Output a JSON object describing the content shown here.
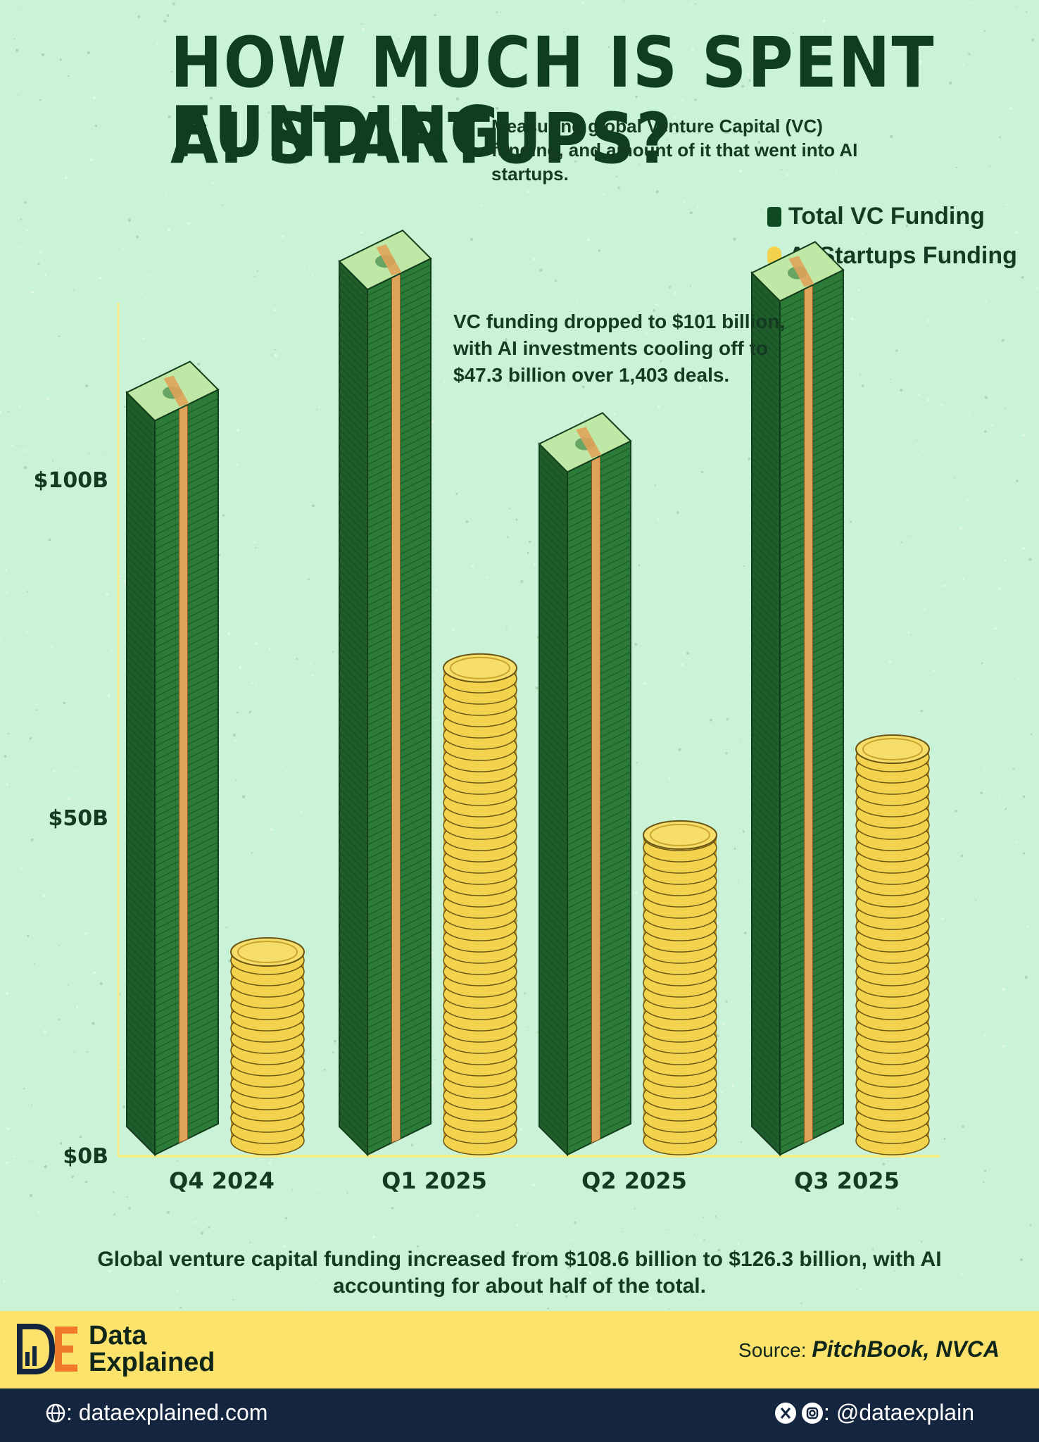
{
  "header": {
    "title_line1": "HOW MUCH IS SPENT FUNDING",
    "title_line2": "AI STARTUPS?",
    "subtitle": "Measuring global Venture Capital (VC) funding, and amount of it that went into AI startups."
  },
  "legend": {
    "vc": "Total VC Funding",
    "ai": "AI Startups Funding"
  },
  "colors": {
    "vc": "#2b7a37",
    "vc_dark": "#1f5e2a",
    "strap": "#e0a35a",
    "ai": "#f3d24e",
    "ai_dark": "#c9a52c",
    "axis": "#f1ee8a",
    "text": "#143a22"
  },
  "annotation": "VC funding dropped to $101 billion, with AI investments cooling off to $47.3 billion over 1,403 deals.",
  "footnote": "Global venture capital funding increased from $108.6 billion to $126.3 billion, with AI accounting for about half of the total.",
  "brand": {
    "name_line1": "Data",
    "name_line2": "Explained",
    "source_label": "Source:",
    "source_value": "PitchBook, NVCA",
    "website": ": dataexplained.com",
    "social": ": @dataexplain"
  },
  "chart_data": {
    "type": "bar",
    "categories": [
      "Q4 2024",
      "Q1 2025",
      "Q2 2025",
      "Q3 2025"
    ],
    "series": [
      {
        "name": "Total VC Funding",
        "values": [
          108.6,
          128,
          101,
          126.3
        ]
      },
      {
        "name": "AI Startups Funding",
        "values": [
          30,
          72,
          47.3,
          60
        ]
      }
    ],
    "yticks": [
      {
        "value": 0,
        "label": "$0B"
      },
      {
        "value": 50,
        "label": "$50B"
      },
      {
        "value": 100,
        "label": "$100B"
      }
    ],
    "ylim": [
      0,
      130
    ]
  }
}
